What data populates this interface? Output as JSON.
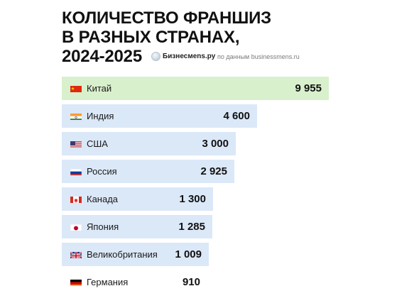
{
  "title_lines": [
    "КОЛИЧЕСТВО ФРАНШИЗ",
    "В РАЗНЫХ СТРАНАХ,",
    "2024-2025"
  ],
  "brand": "Бизнесмens.ру",
  "source": "по данным businessmens.ru",
  "colors": {
    "highlight": "#d9f0cc",
    "bar": "#dbe8f8",
    "last": "#ffffff"
  },
  "chart_data": {
    "type": "bar",
    "orientation": "horizontal",
    "title": "КОЛИЧЕСТВО ФРАНШИЗ В РАЗНЫХ СТРАНАХ, 2024-2025",
    "categories": [
      "Китай",
      "Индия",
      "США",
      "Россия",
      "Канада",
      "Япония",
      "Великобритания",
      "Германия"
    ],
    "values": [
      9955,
      4600,
      3000,
      2925,
      1300,
      1285,
      1009,
      910
    ],
    "value_labels": [
      "9 955",
      "4 600",
      "3 000",
      "2 925",
      "1 300",
      "1 285",
      "1 009",
      "910"
    ],
    "flags": [
      "china-flag",
      "india-flag",
      "usa-flag",
      "russia-flag",
      "canada-flag",
      "japan-flag",
      "uk-flag",
      "germany-flag"
    ],
    "grid": false,
    "legend": "none"
  }
}
